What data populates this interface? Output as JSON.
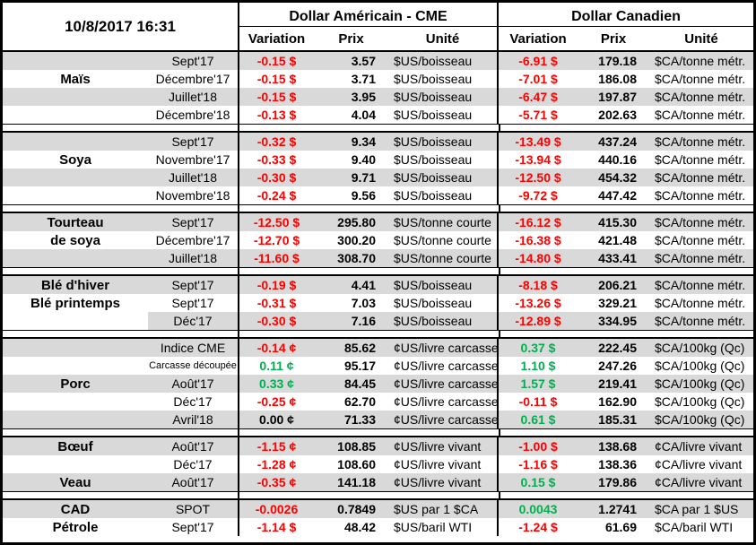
{
  "header": {
    "timestamp": "10/8/2017 16:31",
    "group_us": "Dollar Américain - CME",
    "group_ca": "Dollar Canadien",
    "col_variation": "Variation",
    "col_prix": "Prix",
    "col_unite": "Unité"
  },
  "colors": {
    "negative": "#ff0000",
    "positive": "#00b050",
    "neutral": "#000000",
    "stripe": "#d9d9d9"
  },
  "sections": [
    {
      "rows": [
        {
          "label": "",
          "month": "Sept'17",
          "us_var": "-0.15 $",
          "us_var_color": "negative",
          "us_prix": "3.57",
          "us_unit": "$US/boisseau",
          "ca_var": "-6.91 $",
          "ca_var_color": "negative",
          "ca_prix": "179.18",
          "ca_unit": "$CA/tonne métr.",
          "shade": "full"
        },
        {
          "label": "Maïs",
          "month": "Décembre'17",
          "us_var": "-0.15 $",
          "us_var_color": "negative",
          "us_prix": "3.71",
          "us_unit": "$US/boisseau",
          "ca_var": "-7.01 $",
          "ca_var_color": "negative",
          "ca_prix": "186.08",
          "ca_unit": "$CA/tonne métr.",
          "shade": "none"
        },
        {
          "label": "",
          "month": "Juillet'18",
          "us_var": "-0.15 $",
          "us_var_color": "negative",
          "us_prix": "3.95",
          "us_unit": "$US/boisseau",
          "ca_var": "-6.47 $",
          "ca_var_color": "negative",
          "ca_prix": "197.87",
          "ca_unit": "$CA/tonne métr.",
          "shade": "full"
        },
        {
          "label": "",
          "month": "Décembre'18",
          "us_var": "-0.13 $",
          "us_var_color": "negative",
          "us_prix": "4.04",
          "us_unit": "$US/boisseau",
          "ca_var": "-5.71 $",
          "ca_var_color": "negative",
          "ca_prix": "202.63",
          "ca_unit": "$CA/tonne métr.",
          "shade": "none"
        }
      ]
    },
    {
      "rows": [
        {
          "label": "",
          "month": "Sept'17",
          "us_var": "-0.32 $",
          "us_var_color": "negative",
          "us_prix": "9.34",
          "us_unit": "$US/boisseau",
          "ca_var": "-13.49 $",
          "ca_var_color": "negative",
          "ca_prix": "437.24",
          "ca_unit": "$CA/tonne métr.",
          "shade": "full"
        },
        {
          "label": "Soya",
          "month": "Novembre'17",
          "us_var": "-0.33 $",
          "us_var_color": "negative",
          "us_prix": "9.40",
          "us_unit": "$US/boisseau",
          "ca_var": "-13.94 $",
          "ca_var_color": "negative",
          "ca_prix": "440.16",
          "ca_unit": "$CA/tonne métr.",
          "shade": "none"
        },
        {
          "label": "",
          "month": "Juillet'18",
          "us_var": "-0.30 $",
          "us_var_color": "negative",
          "us_prix": "9.71",
          "us_unit": "$US/boisseau",
          "ca_var": "-12.50 $",
          "ca_var_color": "negative",
          "ca_prix": "454.32",
          "ca_unit": "$CA/tonne métr.",
          "shade": "full"
        },
        {
          "label": "",
          "month": "Novembre'18",
          "us_var": "-0.24 $",
          "us_var_color": "negative",
          "us_prix": "9.56",
          "us_unit": "$US/boisseau",
          "ca_var": "-9.72 $",
          "ca_var_color": "negative",
          "ca_prix": "447.42",
          "ca_unit": "$CA/tonne métr.",
          "shade": "none"
        }
      ]
    },
    {
      "rows": [
        {
          "label": "Tourteau",
          "month": "Sept'17",
          "us_var": "-12.50 $",
          "us_var_color": "negative",
          "us_prix": "295.80",
          "us_unit": "$US/tonne courte",
          "ca_var": "-16.12 $",
          "ca_var_color": "negative",
          "ca_prix": "415.30",
          "ca_unit": "$CA/tonne métr.",
          "shade": "full"
        },
        {
          "label": "de soya",
          "month": "Décembre'17",
          "us_var": "-12.70 $",
          "us_var_color": "negative",
          "us_prix": "300.20",
          "us_unit": "$US/tonne courte",
          "ca_var": "-16.38 $",
          "ca_var_color": "negative",
          "ca_prix": "421.48",
          "ca_unit": "$CA/tonne métr.",
          "shade": "none"
        },
        {
          "label": "",
          "month": "Juillet'18",
          "us_var": "-11.60 $",
          "us_var_color": "negative",
          "us_prix": "308.70",
          "us_unit": "$US/tonne courte",
          "ca_var": "-14.80 $",
          "ca_var_color": "negative",
          "ca_prix": "433.41",
          "ca_unit": "$CA/tonne métr.",
          "shade": "full"
        }
      ]
    },
    {
      "rows": [
        {
          "label": "Blé d'hiver",
          "month": "Sept'17",
          "us_var": "-0.19 $",
          "us_var_color": "negative",
          "us_prix": "4.41",
          "us_unit": "$US/boisseau",
          "ca_var": "-8.18 $",
          "ca_var_color": "negative",
          "ca_prix": "206.21",
          "ca_unit": "$CA/tonne métr.",
          "shade": "full"
        },
        {
          "label": "Blé printemps",
          "month": "Sept'17",
          "us_var": "-0.31 $",
          "us_var_color": "negative",
          "us_prix": "7.03",
          "us_unit": "$US/boisseau",
          "ca_var": "-13.26 $",
          "ca_var_color": "negative",
          "ca_prix": "329.21",
          "ca_unit": "$CA/tonne métr.",
          "shade": "none"
        },
        {
          "label": "",
          "month": "Déc'17",
          "us_var": "-0.30 $",
          "us_var_color": "negative",
          "us_prix": "7.16",
          "us_unit": "$US/boisseau",
          "ca_var": "-12.89 $",
          "ca_var_color": "negative",
          "ca_prix": "334.95",
          "ca_unit": "$CA/tonne métr.",
          "shade": "month"
        }
      ]
    },
    {
      "rows": [
        {
          "label": "",
          "month": "Indice CME",
          "us_var": "-0.14 ¢",
          "us_var_color": "negative",
          "us_prix": "85.62",
          "us_unit": "¢US/livre carcasse",
          "ca_var": "0.37 $",
          "ca_var_color": "positive",
          "ca_prix": "222.45",
          "ca_unit": "$CA/100kg (Qc)",
          "shade": "full"
        },
        {
          "label": "",
          "month": "Carcasse découpée",
          "month_small": true,
          "us_var": "0.11 ¢",
          "us_var_color": "positive",
          "us_prix": "95.17",
          "us_unit": "¢US/livre carcasse",
          "ca_var": "1.10 $",
          "ca_var_color": "positive",
          "ca_prix": "247.26",
          "ca_unit": "$CA/100kg (Qc)",
          "shade": "none"
        },
        {
          "label": "Porc",
          "month": "Août'17",
          "us_var": "0.33 ¢",
          "us_var_color": "positive",
          "us_prix": "84.45",
          "us_unit": "¢US/livre carcasse",
          "ca_var": "1.57 $",
          "ca_var_color": "positive",
          "ca_prix": "219.41",
          "ca_unit": "$CA/100kg (Qc)",
          "shade": "full"
        },
        {
          "label": "",
          "month": "Déc'17",
          "us_var": "-0.25 ¢",
          "us_var_color": "negative",
          "us_prix": "62.70",
          "us_unit": "¢US/livre carcasse",
          "ca_var": "-0.11 $",
          "ca_var_color": "negative",
          "ca_prix": "162.90",
          "ca_unit": "$CA/100kg (Qc)",
          "shade": "none"
        },
        {
          "label": "",
          "month": "Avril'18",
          "us_var": "0.00 ¢",
          "us_var_color": "neutral",
          "us_prix": "71.33",
          "us_unit": "¢US/livre carcasse",
          "ca_var": "0.61 $",
          "ca_var_color": "positive",
          "ca_prix": "185.31",
          "ca_unit": "$CA/100kg (Qc)",
          "shade": "full"
        }
      ]
    },
    {
      "rows": [
        {
          "label": "Bœuf",
          "month": "Août'17",
          "us_var": "-1.15 ¢",
          "us_var_color": "negative",
          "us_prix": "108.85",
          "us_unit": "¢US/livre vivant",
          "ca_var": "-1.00 $",
          "ca_var_color": "negative",
          "ca_prix": "138.68",
          "ca_unit": "¢CA/livre vivant",
          "shade": "full"
        },
        {
          "label": "",
          "month": "Déc'17",
          "us_var": "-1.28 ¢",
          "us_var_color": "negative",
          "us_prix": "108.60",
          "us_unit": "¢US/livre vivant",
          "ca_var": "-1.16 $",
          "ca_var_color": "negative",
          "ca_prix": "138.36",
          "ca_unit": "¢CA/livre vivant",
          "shade": "none"
        },
        {
          "label": "Veau",
          "month": "Août'17",
          "us_var": "-0.35 ¢",
          "us_var_color": "negative",
          "us_prix": "141.18",
          "us_unit": "¢US/livre vivant",
          "ca_var": "0.15 $",
          "ca_var_color": "positive",
          "ca_prix": "179.86",
          "ca_unit": "¢CA/livre vivant",
          "shade": "full"
        }
      ]
    },
    {
      "rows": [
        {
          "label": "CAD",
          "month": "SPOT",
          "us_var": "-0.0026",
          "us_var_color": "negative",
          "us_prix": "0.7849",
          "us_unit": "$US par 1 $CA",
          "ca_var": "0.0043",
          "ca_var_color": "positive",
          "ca_prix": "1.2741",
          "ca_unit": "$CA par 1 $US",
          "shade": "full"
        },
        {
          "label": "Pétrole",
          "month": "Sept'17",
          "us_var": "-1.14 $",
          "us_var_color": "negative",
          "us_prix": "48.42",
          "us_unit": "$US/baril WTI",
          "ca_var": "-1.24 $",
          "ca_var_color": "negative",
          "ca_prix": "61.69",
          "ca_unit": "$CA/baril WTI",
          "shade": "none"
        }
      ]
    }
  ]
}
